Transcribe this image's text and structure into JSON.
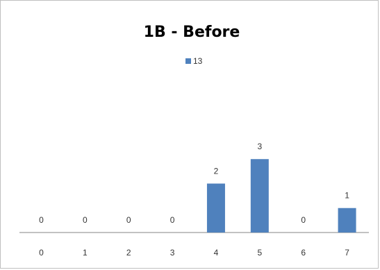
{
  "chart_data": {
    "type": "bar",
    "title": "1B - Before",
    "categories": [
      "0",
      "1",
      "2",
      "3",
      "4",
      "5",
      "6",
      "7"
    ],
    "series": [
      {
        "name": "13",
        "values": [
          0,
          0,
          0,
          0,
          2,
          3,
          0,
          1
        ],
        "color": "#4f81bd"
      }
    ],
    "data_labels": true,
    "ylim": [
      0,
      3.8
    ],
    "grid": false,
    "legend_position": "top"
  }
}
